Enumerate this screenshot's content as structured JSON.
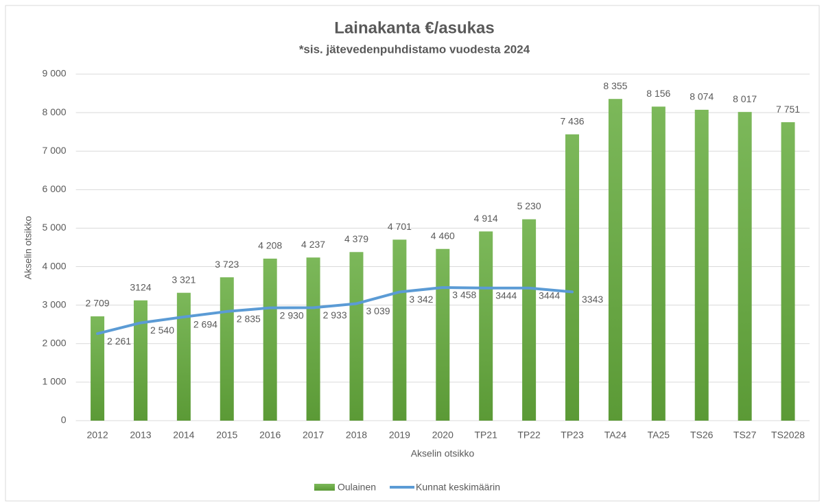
{
  "chart_data": {
    "type": "bar",
    "title": "Lainakanta €/asukas",
    "subtitle": "*sis. jätevedenpuhdistamo vuodesta 2024",
    "x_label": "Akselin otsikko",
    "y_label": "Akselin otsikko",
    "categories": [
      "2012",
      "2013",
      "2014",
      "2015",
      "2016",
      "2017",
      "2018",
      "2019",
      "2020",
      "TP21",
      "TP22",
      "TP23",
      "TA24",
      "TA25",
      "TS26",
      "TS27",
      "TS2028"
    ],
    "series": [
      {
        "name": "Oulainen",
        "type": "bar",
        "color": "#70ad47",
        "values": [
          2709,
          3124,
          3321,
          3723,
          4208,
          4237,
          4379,
          4701,
          4460,
          4914,
          5230,
          7436,
          8355,
          8156,
          8074,
          8017,
          7751
        ],
        "value_labels": [
          "2 709",
          "3124",
          "3 321",
          "3 723",
          "4 208",
          "4 237",
          "4 379",
          "4 701",
          "4 460",
          "4 914",
          "5 230",
          "7 436",
          "8 355",
          "8 156",
          "8 074",
          "8 017",
          "7 751"
        ]
      },
      {
        "name": "Kunnat keskimäärin",
        "type": "line",
        "color": "#5b9bd5",
        "values": [
          2261,
          2540,
          2694,
          2835,
          2930,
          2933,
          3039,
          3342,
          3458,
          3444,
          3444,
          3343,
          null,
          null,
          null,
          null,
          null
        ],
        "value_labels": [
          "2 261",
          "2 540",
          "2 694",
          "2 835",
          "2 930",
          "2 933",
          "3 039",
          "3 342",
          "3 458",
          "3444",
          "3444",
          "3343",
          null,
          null,
          null,
          null,
          null
        ]
      }
    ],
    "ylim": [
      0,
      9000
    ],
    "yticks": [
      0,
      {
        "value": 1000,
        "label": "1 000"
      },
      {
        "value": 2000,
        "label": "2 000"
      },
      {
        "value": 3000,
        "label": "3 000"
      },
      {
        "value": 4000,
        "label": "4 000"
      },
      {
        "value": 5000,
        "label": "5 000"
      },
      {
        "value": 6000,
        "label": "6 000"
      },
      {
        "value": 7000,
        "label": "7 000"
      },
      {
        "value": 8000,
        "label": "8 000"
      },
      {
        "value": 9000,
        "label": "9 000"
      }
    ],
    "grid": true,
    "legend": "bottom"
  }
}
